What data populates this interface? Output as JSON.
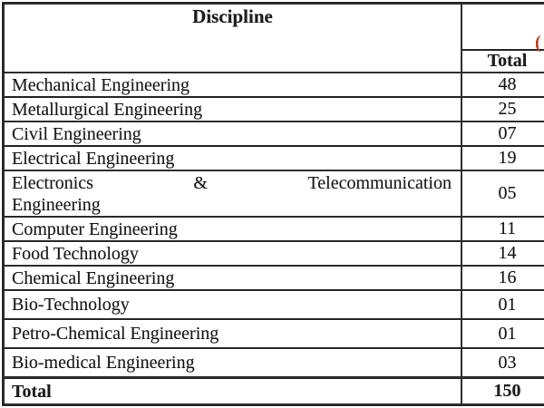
{
  "table": {
    "discipline_header": "Discipline",
    "total_header": "Total",
    "cropped_red_text": "(",
    "rows": [
      {
        "name": "Mechanical Engineering",
        "total": "48"
      },
      {
        "name": "Metallurgical Engineering",
        "total": "25"
      },
      {
        "name": "Civil Engineering",
        "total": "07"
      },
      {
        "name": "Electrical Engineering",
        "total": "19"
      },
      {
        "name": "Electronics & Telecommunication Engineering",
        "line1_words": [
          "Electronics",
          "&",
          "Telecommunication"
        ],
        "line2": "Engineering",
        "total": "05"
      },
      {
        "name": "Computer Engineering",
        "total": "11"
      },
      {
        "name": "Food Technology",
        "total": "14"
      },
      {
        "name": "Chemical Engineering",
        "total": "16"
      },
      {
        "name": "Bio-Technology",
        "total": "01"
      },
      {
        "name": "Petro-Chemical Engineering",
        "total": "01"
      },
      {
        "name": "Bio-medical Engineering",
        "total": "03"
      }
    ],
    "footer": {
      "label": "Total",
      "total": "150"
    }
  },
  "colors": {
    "line": "#2b2b2b",
    "text": "#1d1d1d",
    "red_accent": "#c13a1e",
    "background": "#ffffff"
  }
}
